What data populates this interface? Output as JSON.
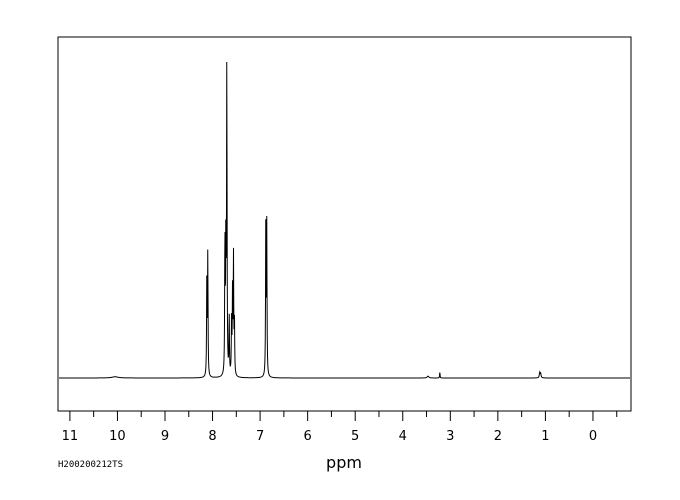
{
  "chart_data": {
    "type": "line",
    "title": "",
    "xlabel": "ppm",
    "ylabel": "",
    "sample_id": "H200200212TS",
    "xlim": [
      11.25,
      -0.8
    ],
    "x_reversed": true,
    "ylim": [
      0,
      1.0
    ],
    "grid": false,
    "ticks": {
      "major": [
        11,
        10,
        9,
        8,
        7,
        6,
        5,
        4,
        3,
        2,
        1,
        0
      ],
      "major_labels": [
        "11",
        "10",
        "9",
        "8",
        "7",
        "6",
        "5",
        "4",
        "3",
        "2",
        "1",
        "0"
      ],
      "minor_step": 0.5
    },
    "series": [
      {
        "peaks": [
          {
            "ppm": 10.05,
            "height": 0.004,
            "width": 0.08
          },
          {
            "ppm": 8.12,
            "height": 0.33,
            "width": 0.006
          },
          {
            "ppm": 8.1,
            "height": 0.39,
            "width": 0.006
          },
          {
            "ppm": 7.74,
            "height": 0.44,
            "width": 0.006
          },
          {
            "ppm": 7.72,
            "height": 0.45,
            "width": 0.006
          },
          {
            "ppm": 7.7,
            "height": 1.0,
            "width": 0.006
          },
          {
            "ppm": 7.65,
            "height": 0.19,
            "width": 0.006
          },
          {
            "ppm": 7.6,
            "height": 0.18,
            "width": 0.006
          },
          {
            "ppm": 7.58,
            "height": 0.26,
            "width": 0.006
          },
          {
            "ppm": 7.56,
            "height": 0.38,
            "width": 0.006
          },
          {
            "ppm": 7.54,
            "height": 0.18,
            "width": 0.006
          },
          {
            "ppm": 6.88,
            "height": 0.49,
            "width": 0.006
          },
          {
            "ppm": 6.86,
            "height": 0.48,
            "width": 0.006
          },
          {
            "ppm": 3.47,
            "height": 0.006,
            "width": 0.02
          },
          {
            "ppm": 3.22,
            "height": 0.02,
            "width": 0.005
          },
          {
            "ppm": 1.12,
            "height": 0.016,
            "width": 0.01
          },
          {
            "ppm": 1.1,
            "height": 0.014,
            "width": 0.01
          }
        ]
      }
    ]
  }
}
